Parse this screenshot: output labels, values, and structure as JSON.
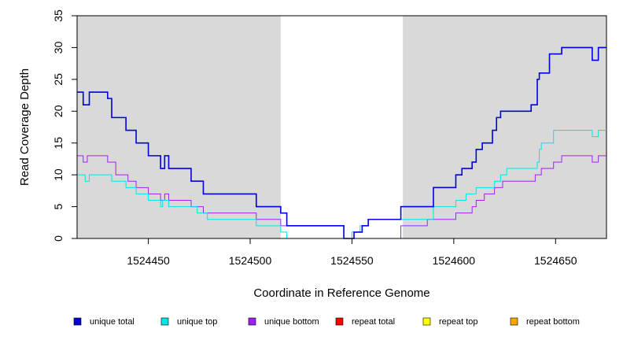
{
  "chart_data": {
    "type": "line",
    "xlabel": "Coordinate in Reference Genome",
    "ylabel": "Read Coverage Depth",
    "xlim": [
      1524415,
      1524675
    ],
    "ylim": [
      0,
      35
    ],
    "x_ticks": [
      1524450,
      1524500,
      1524550,
      1524600,
      1524650
    ],
    "y_ticks": [
      0,
      5,
      10,
      15,
      20,
      25,
      30,
      35
    ],
    "shaded_regions": [
      [
        1524415,
        1524515
      ],
      [
        1524575,
        1524675
      ]
    ],
    "legend_position": "bottom",
    "series": [
      {
        "name": "unique total",
        "color": "#0000dd",
        "points": [
          [
            1524415,
            23
          ],
          [
            1524418,
            21
          ],
          [
            1524421,
            23
          ],
          [
            1524430,
            22
          ],
          [
            1524432,
            19
          ],
          [
            1524439,
            17
          ],
          [
            1524444,
            15
          ],
          [
            1524450,
            13
          ],
          [
            1524456,
            11
          ],
          [
            1524458,
            13
          ],
          [
            1524460,
            11
          ],
          [
            1524471,
            9
          ],
          [
            1524477,
            7
          ],
          [
            1524503,
            5
          ],
          [
            1524515,
            4
          ],
          [
            1524518,
            2
          ],
          [
            1524546,
            0
          ],
          [
            1524551,
            1
          ],
          [
            1524555,
            2
          ],
          [
            1524558,
            3
          ],
          [
            1524574,
            5
          ],
          [
            1524590,
            8
          ],
          [
            1524601,
            10
          ],
          [
            1524604,
            11
          ],
          [
            1524609,
            12
          ],
          [
            1524611,
            14
          ],
          [
            1524614,
            15
          ],
          [
            1524619,
            17
          ],
          [
            1524621,
            19
          ],
          [
            1524623,
            20
          ],
          [
            1524638,
            21
          ],
          [
            1524641,
            25
          ],
          [
            1524642,
            26
          ],
          [
            1524647,
            29
          ],
          [
            1524653,
            30
          ],
          [
            1524668,
            28
          ],
          [
            1524671,
            30
          ],
          [
            1524675,
            30
          ]
        ]
      },
      {
        "name": "unique top",
        "color": "#00e5e5",
        "points": [
          [
            1524415,
            10
          ],
          [
            1524419,
            9
          ],
          [
            1524421,
            10
          ],
          [
            1524432,
            9
          ],
          [
            1524439,
            8
          ],
          [
            1524444,
            7
          ],
          [
            1524450,
            6
          ],
          [
            1524456,
            5
          ],
          [
            1524457,
            6
          ],
          [
            1524460,
            5
          ],
          [
            1524474,
            4
          ],
          [
            1524479,
            3
          ],
          [
            1524503,
            2
          ],
          [
            1524515,
            1
          ],
          [
            1524518,
            0
          ],
          [
            1524550,
            1
          ],
          [
            1524554,
            2
          ],
          [
            1524558,
            3
          ],
          [
            1524574,
            3
          ],
          [
            1524590,
            5
          ],
          [
            1524601,
            6
          ],
          [
            1524606,
            7
          ],
          [
            1524611,
            8
          ],
          [
            1524620,
            9
          ],
          [
            1524623,
            10
          ],
          [
            1524626,
            11
          ],
          [
            1524641,
            12
          ],
          [
            1524642,
            14
          ],
          [
            1524643,
            15
          ],
          [
            1524649,
            17
          ],
          [
            1524668,
            16
          ],
          [
            1524671,
            17
          ],
          [
            1524675,
            17
          ]
        ]
      },
      {
        "name": "unique bottom",
        "color": "#a020f0",
        "points": [
          [
            1524415,
            13
          ],
          [
            1524418,
            12
          ],
          [
            1524420,
            13
          ],
          [
            1524430,
            12
          ],
          [
            1524434,
            10
          ],
          [
            1524440,
            9
          ],
          [
            1524444,
            8
          ],
          [
            1524450,
            7
          ],
          [
            1524456,
            6
          ],
          [
            1524458,
            7
          ],
          [
            1524460,
            6
          ],
          [
            1524471,
            5
          ],
          [
            1524477,
            4
          ],
          [
            1524503,
            3
          ],
          [
            1524515,
            2
          ],
          [
            1524546,
            0
          ],
          [
            1524574,
            2
          ],
          [
            1524587,
            3
          ],
          [
            1524601,
            4
          ],
          [
            1524609,
            5
          ],
          [
            1524611,
            6
          ],
          [
            1524615,
            7
          ],
          [
            1524620,
            8
          ],
          [
            1524624,
            9
          ],
          [
            1524640,
            10
          ],
          [
            1524643,
            11
          ],
          [
            1524649,
            12
          ],
          [
            1524653,
            13
          ],
          [
            1524668,
            12
          ],
          [
            1524671,
            13
          ],
          [
            1524675,
            13
          ]
        ]
      },
      {
        "name": "repeat total",
        "color": "#ff0000",
        "points": [
          [
            1524415,
            0
          ],
          [
            1524675,
            0
          ]
        ]
      },
      {
        "name": "repeat top",
        "color": "#ffff00",
        "points": [
          [
            1524415,
            0
          ],
          [
            1524675,
            0
          ]
        ]
      },
      {
        "name": "repeat bottom",
        "color": "#ffa500",
        "points": [
          [
            1524415,
            0
          ],
          [
            1524675,
            0
          ]
        ]
      }
    ]
  }
}
